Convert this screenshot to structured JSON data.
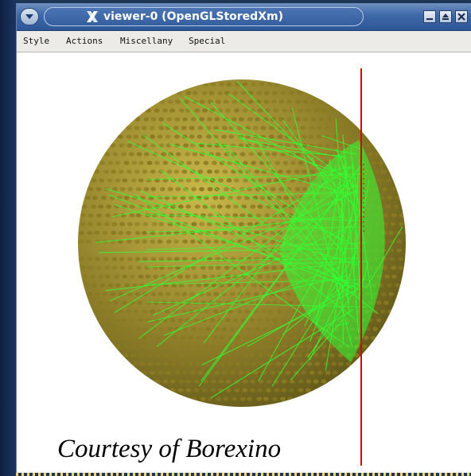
{
  "window": {
    "title": "viewer-0 (OpenGLStoredXm)",
    "icons": {
      "menu": "dropdown-arrow-icon",
      "app": "x11-logo-icon",
      "minimize": "minimize-icon",
      "maximize": "maximize-icon",
      "close": "close-icon"
    }
  },
  "menu": {
    "items": [
      "Style",
      "Actions",
      "Miscellany",
      "Special"
    ]
  },
  "viewport": {
    "content": "3D detector sphere rendering with photomultiplier array and green particle tracks",
    "colors": {
      "pmt": "#8a7a22",
      "track": "#33ff33",
      "axis": "#dd0000",
      "background": "#ffffff"
    }
  },
  "caption": "Courtesy of Borexino"
}
